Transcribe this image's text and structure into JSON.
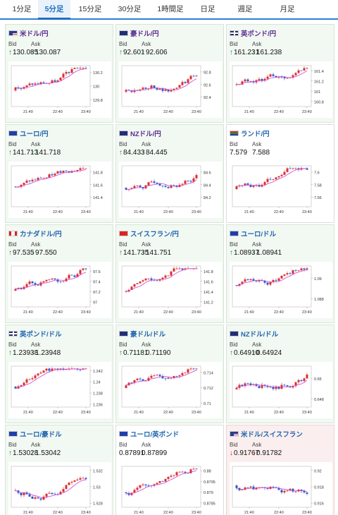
{
  "tabs": [
    {
      "label": "1分足",
      "active": false
    },
    {
      "label": "5分足",
      "active": true
    },
    {
      "label": "15分足",
      "active": false
    },
    {
      "label": "30分足",
      "active": false
    },
    {
      "label": "1時間足",
      "active": false
    },
    {
      "label": "日足",
      "active": false
    },
    {
      "label": "週足",
      "active": false
    },
    {
      "label": "月足",
      "active": false
    }
  ],
  "labels": {
    "bid": "Bid",
    "ask": "Ask"
  },
  "chart_x_labels": [
    "21:40",
    "22:40",
    "23:40"
  ],
  "colors": {
    "up_candle": "#d93030",
    "down_candle": "#2b58c8",
    "ma_line": "#d040d0",
    "up_arrow": "#1e8c3a",
    "down_arrow": "#d02020"
  },
  "pairs": [
    {
      "name": "米ドル/円",
      "flag": "us",
      "bid": "130.085",
      "ask": "130.087",
      "dir": "up",
      "style": "normal",
      "chart": {
        "yticks": [
          "130.2",
          "130",
          "129.8"
        ],
        "ylim": [
          129.7,
          130.3
        ]
      }
    },
    {
      "name": "豪ドル/円",
      "flag": "au",
      "bid": "92.601",
      "ask": "92.606",
      "dir": "up",
      "style": "normal",
      "chart": {
        "yticks": [
          "92.8",
          "92.6",
          "92.4"
        ],
        "ylim": [
          92.25,
          92.9
        ]
      }
    },
    {
      "name": "英ポンド/円",
      "flag": "gb",
      "bid": "161.231",
      "ask": "161.238",
      "dir": "up",
      "style": "normal",
      "chart": {
        "yticks": [
          "161.4",
          "161.2",
          "161",
          "160.8"
        ],
        "ylim": [
          160.7,
          161.5
        ]
      }
    },
    {
      "name": "ユーロ/円",
      "flag": "eu",
      "bid": "141.713",
      "ask": "141.718",
      "dir": "up",
      "style": "normal",
      "chart": {
        "yticks": [
          "141.8",
          "141.6",
          "141.4"
        ],
        "ylim": [
          141.25,
          141.9
        ]
      }
    },
    {
      "name": "NZドル/円",
      "flag": "nz",
      "bid": "84.433",
      "ask": "84.445",
      "dir": "up",
      "style": "normal",
      "chart": {
        "yticks": [
          "84.6",
          "84.4",
          "84.2"
        ],
        "ylim": [
          84.05,
          84.7
        ]
      }
    },
    {
      "name": "ランド/円",
      "flag": "za",
      "bid": "7.579",
      "ask": "7.588",
      "dir": "none",
      "style": "white",
      "chart": {
        "yticks": [
          "7.6",
          "7.58",
          "7.56"
        ],
        "ylim": [
          7.545,
          7.61
        ]
      }
    },
    {
      "name": "カナダドル/円",
      "flag": "ca",
      "bid": "97.535",
      "ask": "97.550",
      "dir": "up",
      "style": "normal",
      "chart": {
        "yticks": [
          "97.6",
          "97.4",
          "97.2",
          "97"
        ],
        "ylim": [
          96.9,
          97.7
        ]
      }
    },
    {
      "name": "スイスフラン/円",
      "flag": "ch",
      "bid": "141.735",
      "ask": "141.751",
      "dir": "up",
      "style": "normal",
      "chart": {
        "yticks": [
          "141.8",
          "141.6",
          "141.4",
          "141.2"
        ],
        "ylim": [
          141.1,
          141.9
        ]
      }
    },
    {
      "name": "ユーロ/ドル",
      "flag": "eu",
      "bid": "1.08937",
      "ask": "1.08941",
      "dir": "up",
      "style": "normal",
      "chart": {
        "yticks": [
          "1.09",
          "1.088"
        ],
        "ylim": [
          1.0872,
          1.0912
        ]
      }
    },
    {
      "name": "英ポンド/ドル",
      "flag": "gb",
      "bid": "1.23938",
      "ask": "1.23948",
      "dir": "up",
      "style": "normal",
      "chart": {
        "yticks": [
          "1.242",
          "1.24",
          "1.238",
          "1.236"
        ],
        "ylim": [
          1.2355,
          1.2428
        ]
      }
    },
    {
      "name": "豪ドル/ドル",
      "flag": "au",
      "bid": "0.71181",
      "ask": "0.71190",
      "dir": "up",
      "style": "normal",
      "chart": {
        "yticks": [
          "0.714",
          "0.712",
          "0.71"
        ],
        "ylim": [
          0.7095,
          0.7148
        ]
      }
    },
    {
      "name": "NZドル/ドル",
      "flag": "nz",
      "bid": "0.64910",
      "ask": "0.64924",
      "dir": "up",
      "style": "normal",
      "chart": {
        "yticks": [
          "0.65",
          "0.648"
        ],
        "ylim": [
          0.6472,
          0.6512
        ]
      }
    },
    {
      "name": "ユーロ/豪ドル",
      "flag": "eu",
      "bid": "1.53028",
      "ask": "1.53042",
      "dir": "up",
      "style": "normal",
      "chart": {
        "yticks": [
          "1.532",
          "1.53",
          "1.528"
        ],
        "ylim": [
          1.5275,
          1.5325
        ]
      }
    },
    {
      "name": "ユーロ/英ポンド",
      "flag": "eu",
      "bid": "0.87891",
      "ask": "0.87899",
      "dir": "none",
      "style": "white",
      "chart": {
        "yticks": [
          "0.88",
          "0.8795",
          "0.879",
          "0.8785"
        ],
        "ylim": [
          0.8783,
          0.8802
        ]
      }
    },
    {
      "name": "米ドル/スイスフラン",
      "flag": "us",
      "bid": "0.91767",
      "ask": "0.91782",
      "dir": "down",
      "style": "down",
      "chart": {
        "yticks": [
          "0.92",
          "0.918",
          "0.916"
        ],
        "ylim": [
          0.9155,
          0.9205
        ]
      }
    }
  ]
}
